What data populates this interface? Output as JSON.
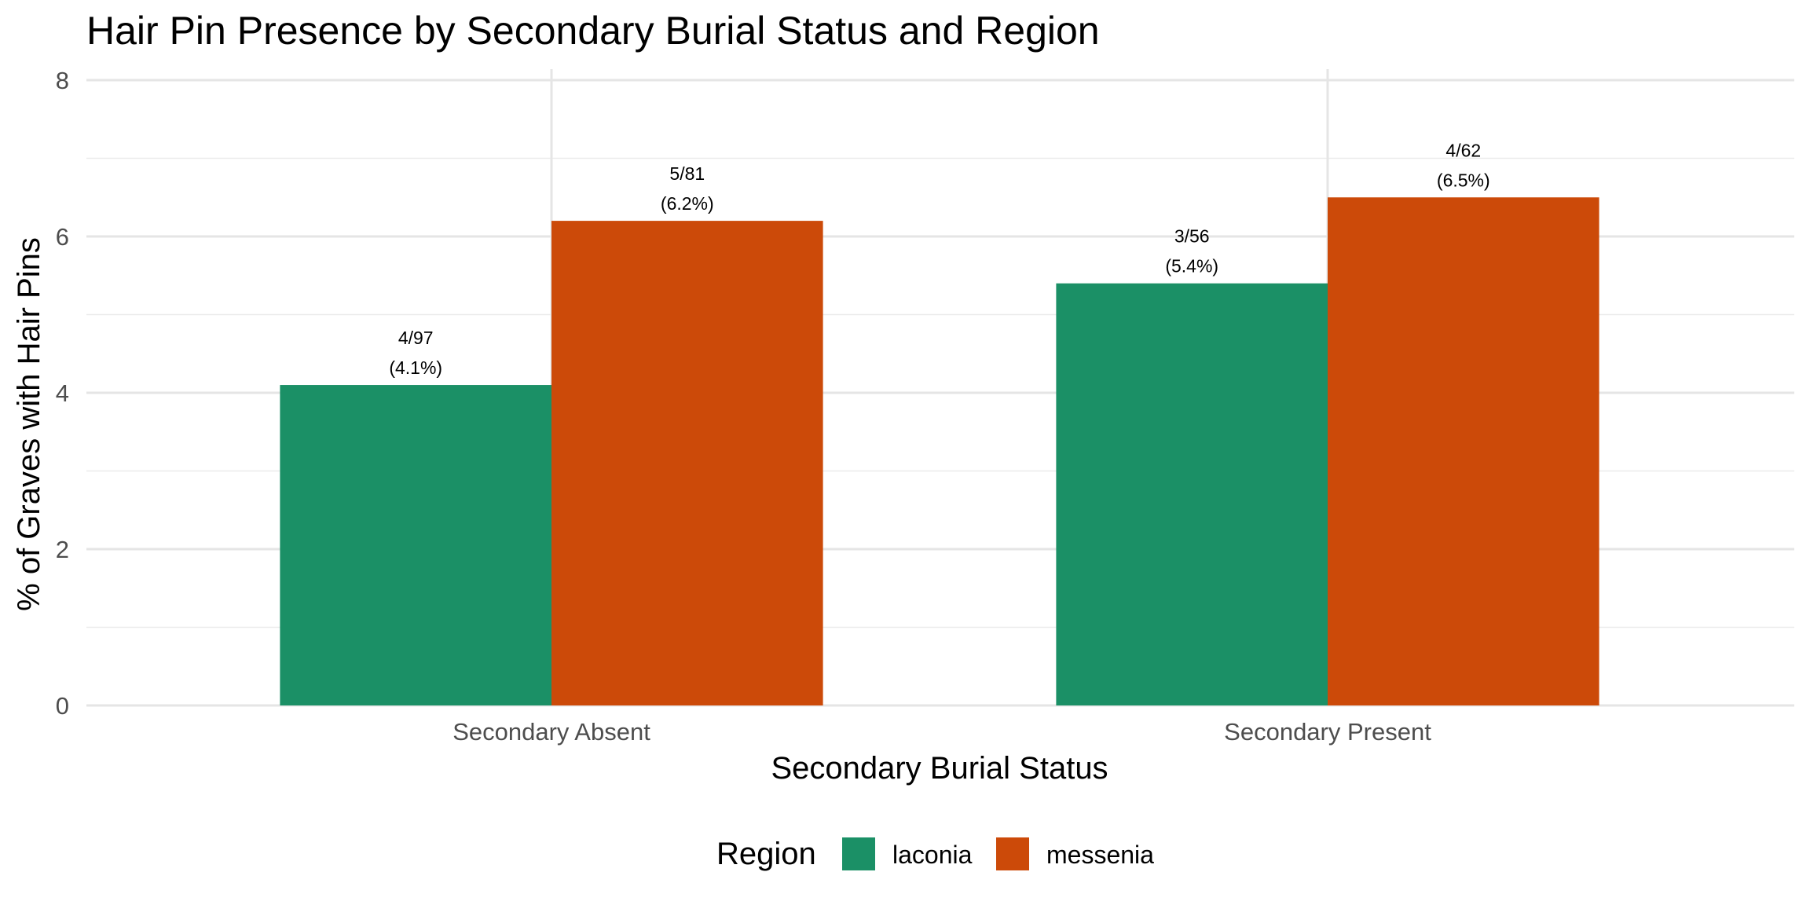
{
  "chart_data": {
    "type": "bar",
    "title": "Hair Pin Presence by Secondary Burial Status and Region",
    "xlabel": "Secondary Burial Status",
    "ylabel": "% of Graves with Hair Pins",
    "categories": [
      "Secondary Absent",
      "Secondary Present"
    ],
    "ylim": [
      0,
      8
    ],
    "yticks": [
      "0",
      "2",
      "4",
      "6",
      "8"
    ],
    "grid": true,
    "legend": {
      "title": "Region",
      "placement": "bottom"
    },
    "series": [
      {
        "name": "laconia",
        "color": "#1b9066",
        "values": [
          4.1,
          5.4
        ],
        "labels": [
          [
            "4/97",
            "(4.1%)"
          ],
          [
            "3/56",
            "(5.4%)"
          ]
        ]
      },
      {
        "name": "messenia",
        "color": "#cc4a09",
        "values": [
          6.2,
          6.5
        ],
        "labels": [
          [
            "5/81",
            "(6.2%)"
          ],
          [
            "4/62",
            "(6.5%)"
          ]
        ]
      }
    ]
  }
}
